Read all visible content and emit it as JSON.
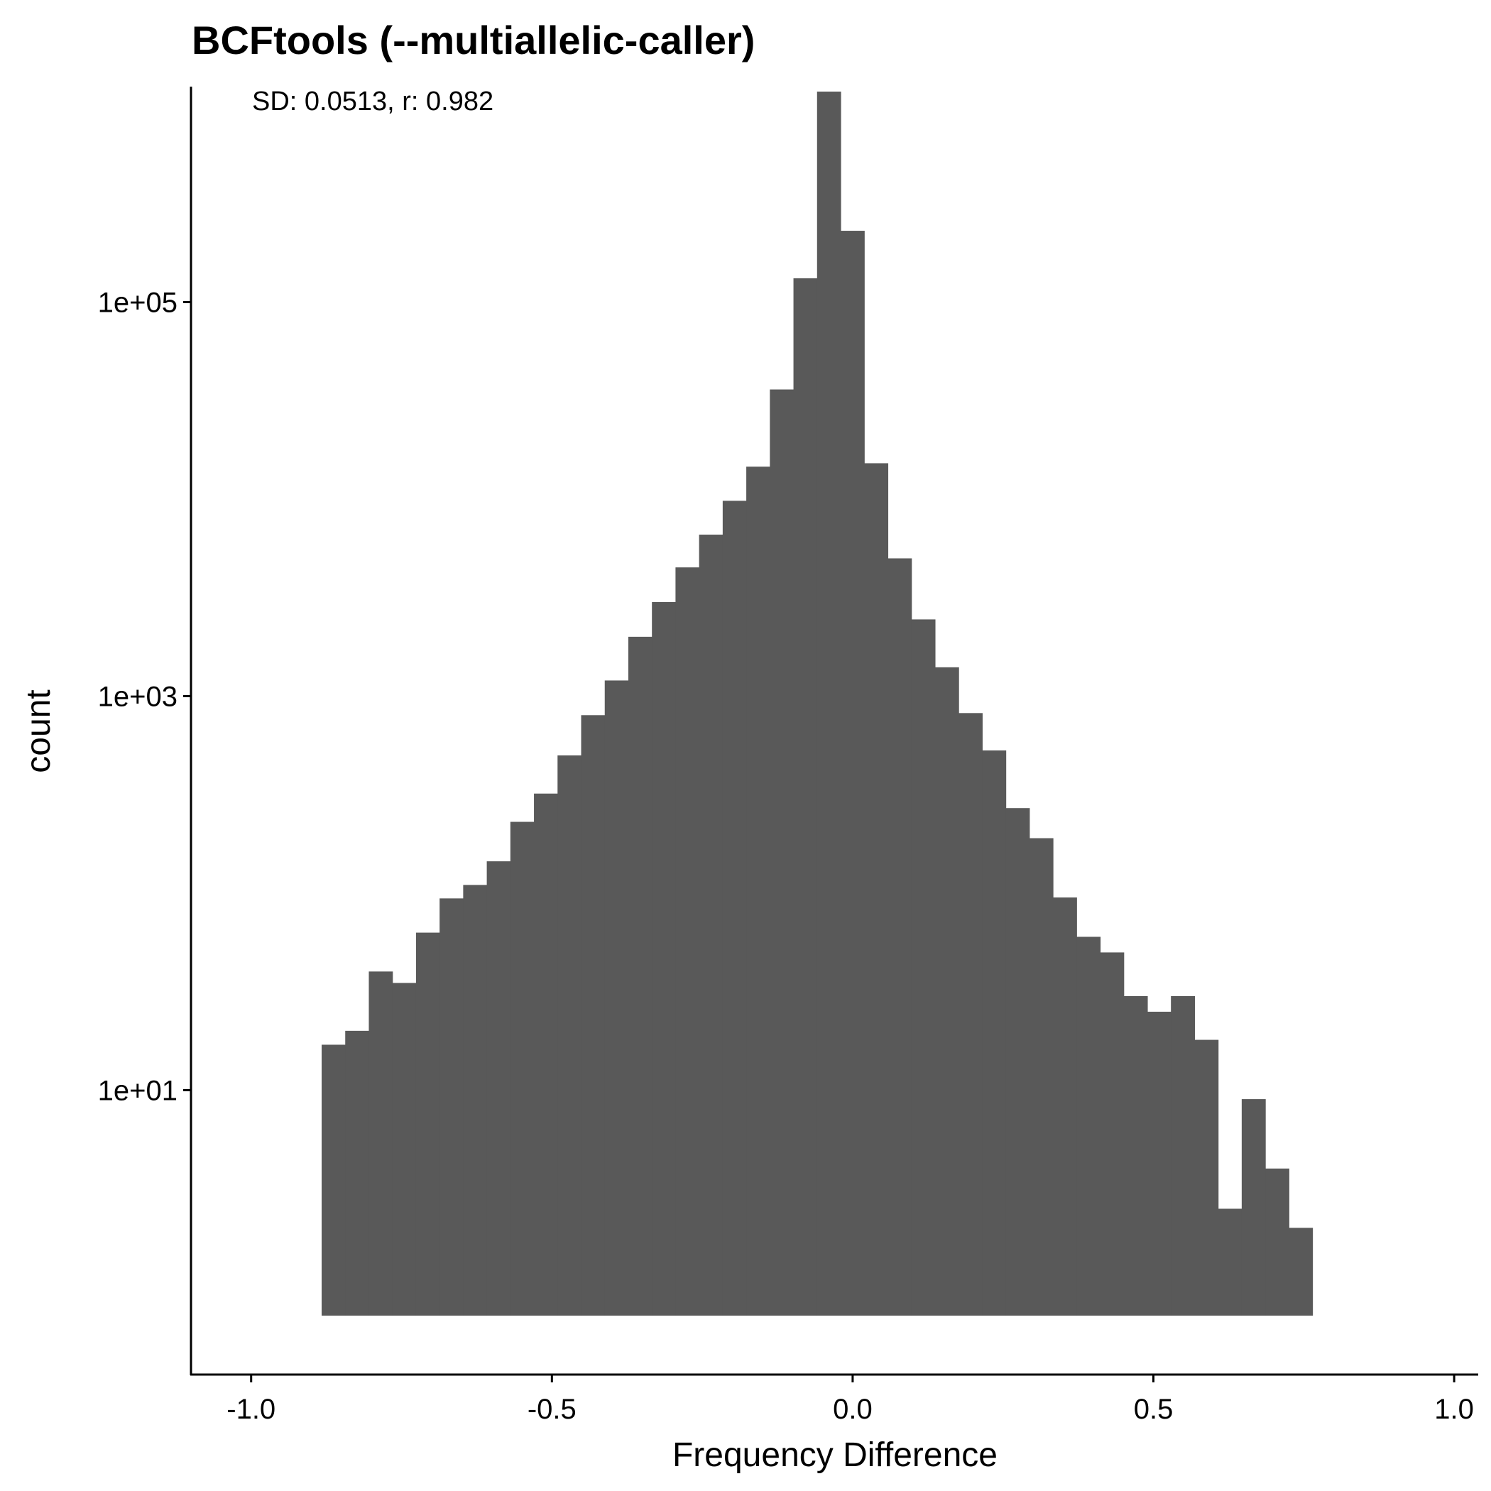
{
  "chart_data": {
    "type": "bar",
    "title": "BCFtools (--multiallelic-caller)",
    "annotation": "SD: 0.0513, r: 0.982",
    "xlabel": "Frequency Difference",
    "ylabel": "count",
    "y_scale": "log10",
    "x_ticks": [
      {
        "value": -1.0,
        "label": "-1.0"
      },
      {
        "value": -0.5,
        "label": "-0.5"
      },
      {
        "value": 0.0,
        "label": "0.0"
      },
      {
        "value": 0.5,
        "label": "0.5"
      },
      {
        "value": 1.0,
        "label": "1.0"
      }
    ],
    "y_ticks": [
      {
        "value": 10,
        "label": "1e+01"
      },
      {
        "value": 1000,
        "label": "1e+03"
      },
      {
        "value": 100000,
        "label": "1e+05"
      }
    ],
    "xlim": [
      -1.1,
      1.04
    ],
    "ylim": [
      0.36,
      1240000
    ],
    "grid": false,
    "bar_color": "#595959",
    "bin_start": -0.8828,
    "bin_width": 0.03922,
    "counts": [
      17,
      20,
      40,
      35,
      63,
      94,
      110,
      145,
      230,
      320,
      500,
      800,
      1200,
      2000,
      3000,
      4500,
      6600,
      9800,
      14600,
      36000,
      132000,
      1170000,
      230000,
      15200,
      5000,
      2450,
      1400,
      820,
      530,
      270,
      190,
      95,
      60,
      50,
      30,
      25,
      30,
      18,
      2.5,
      9,
      4,
      2
    ]
  }
}
